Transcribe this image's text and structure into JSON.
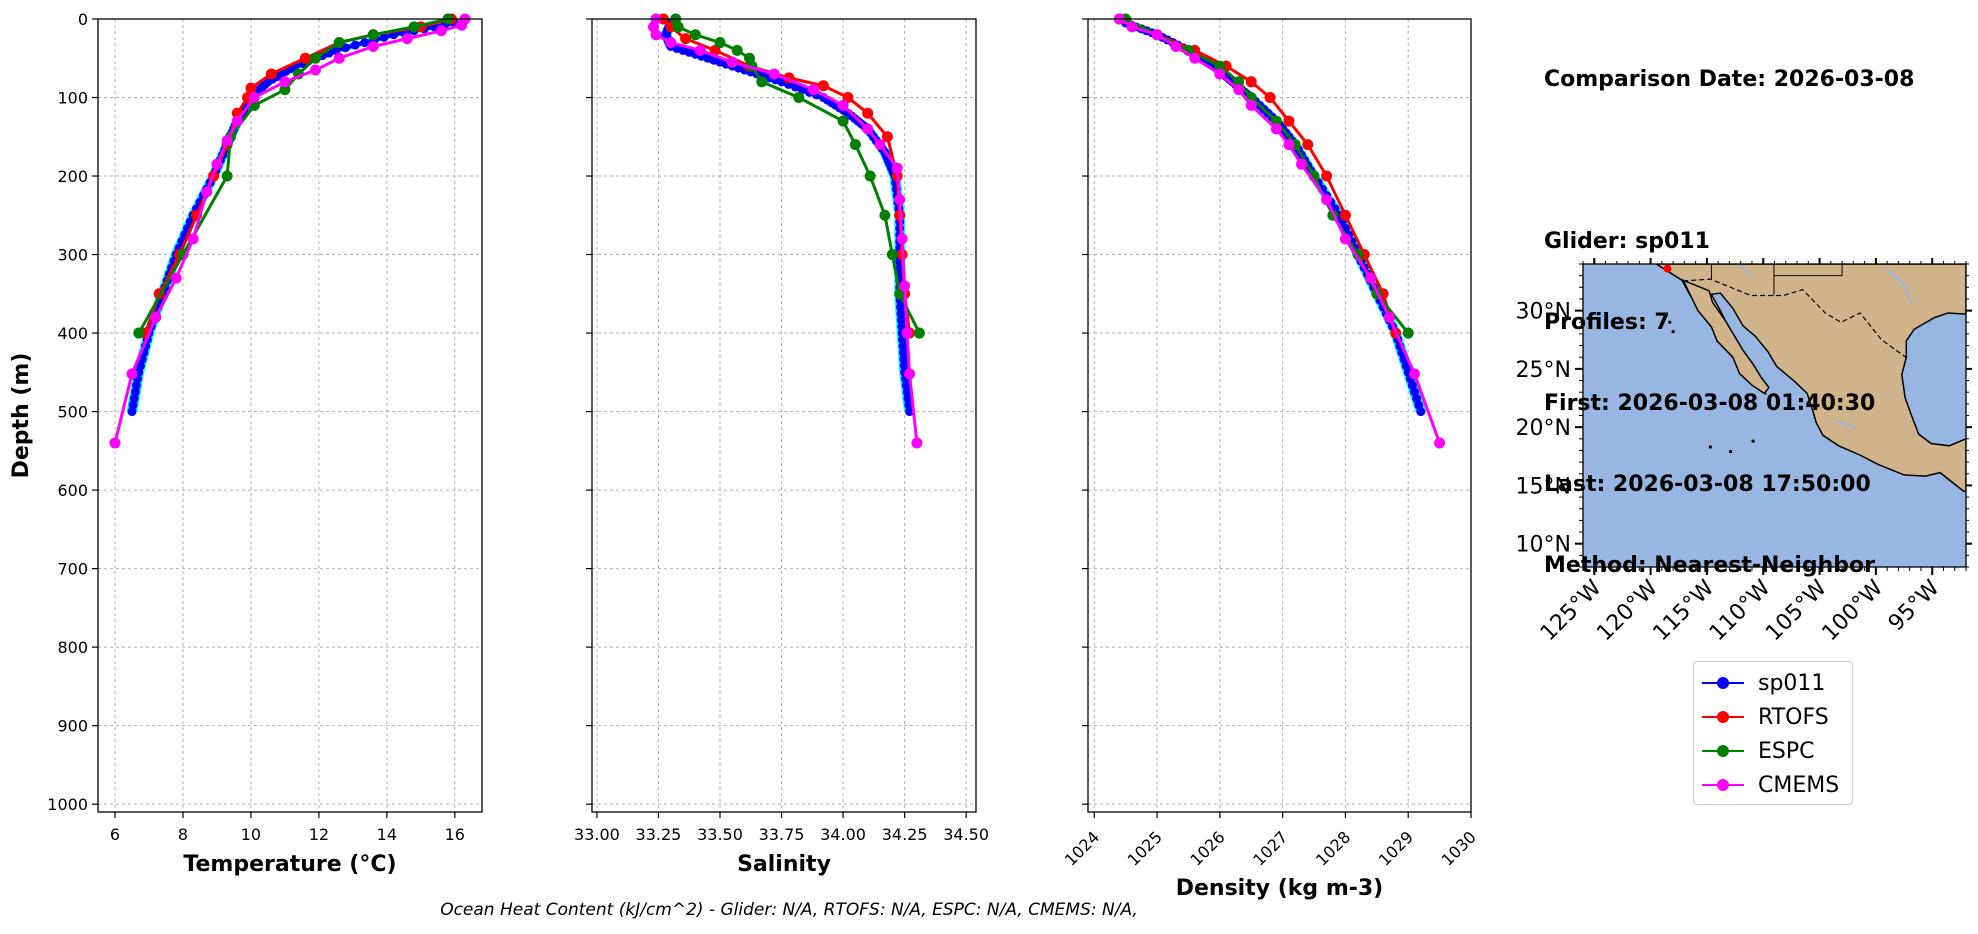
{
  "info": {
    "comparison": "Comparison Date: 2026-03-08",
    "glider": "Glider: sp011",
    "profiles": "Profiles: 7",
    "first": "First: 2026-03-08 01:40:30",
    "last": "Last: 2026-03-08 17:50:00",
    "method": "Method: Nearest-Neighbor"
  },
  "footer": "Ocean Heat Content (kJ/cm^2) - Glider: N/A,  RTOFS: N/A,  ESPC: N/A,  CMEMS: N/A,",
  "colors": {
    "sp011": "#0000ff",
    "sp011_spread": "#00ffff",
    "RTOFS": "#ff0000",
    "ESPC": "#008000",
    "CMEMS": "#ff00ff",
    "ocean": "#97b6e1",
    "land": "#d2b48c"
  },
  "legend": [
    {
      "label": "sp011",
      "color": "#0000ff"
    },
    {
      "label": "RTOFS",
      "color": "#ff0000"
    },
    {
      "label": "ESPC",
      "color": "#008000"
    },
    {
      "label": "CMEMS",
      "color": "#ff00ff"
    }
  ],
  "chart_data": [
    {
      "type": "line",
      "title": "",
      "xlabel": "Temperature (°C)",
      "ylabel": "Depth (m)",
      "xlim": [
        5.5,
        16.8
      ],
      "ylim": [
        1010,
        0
      ],
      "xticks": [
        6,
        8,
        10,
        12,
        14,
        16
      ],
      "yticks": [
        0,
        100,
        200,
        300,
        400,
        500,
        600,
        700,
        800,
        900,
        1000
      ],
      "grid": true,
      "series": [
        {
          "name": "sp011",
          "depth": [
            5,
            20,
            40,
            60,
            80,
            100,
            130,
            160,
            200,
            250,
            300,
            350,
            400,
            450,
            500
          ],
          "values": [
            16.0,
            14.2,
            12.5,
            11.3,
            10.5,
            10.0,
            9.6,
            9.3,
            8.9,
            8.3,
            7.8,
            7.4,
            7.0,
            6.7,
            6.5
          ]
        },
        {
          "name": "RTOFS",
          "depth": [
            0,
            10,
            20,
            30,
            50,
            70,
            88,
            100,
            120,
            160,
            200,
            250,
            300,
            350,
            400
          ],
          "values": [
            15.9,
            15.0,
            13.6,
            12.6,
            11.6,
            10.6,
            10.0,
            9.9,
            9.6,
            9.3,
            8.9,
            8.4,
            7.9,
            7.3,
            6.9
          ]
        },
        {
          "name": "ESPC",
          "depth": [
            0,
            10,
            20,
            30,
            50,
            70,
            90,
            110,
            150,
            200,
            300,
            400
          ],
          "values": [
            15.8,
            14.8,
            13.6,
            12.6,
            11.9,
            11.4,
            11.0,
            10.1,
            9.4,
            9.3,
            8.0,
            6.7
          ]
        },
        {
          "name": "CMEMS",
          "depth": [
            0,
            8,
            15,
            25,
            35,
            50,
            65,
            80,
            100,
            130,
            155,
            185,
            220,
            280,
            330,
            380,
            452,
            540
          ],
          "values": [
            16.3,
            16.2,
            15.6,
            14.6,
            13.6,
            12.6,
            11.9,
            11.0,
            10.1,
            9.6,
            9.3,
            9.0,
            8.7,
            8.3,
            7.8,
            7.2,
            6.5,
            6.0
          ]
        }
      ]
    },
    {
      "type": "line",
      "title": "",
      "xlabel": "Salinity",
      "ylabel": "",
      "xlim": [
        32.98,
        34.54
      ],
      "ylim": [
        1010,
        0
      ],
      "xticks": [
        33.0,
        33.25,
        33.5,
        33.75,
        34.0,
        34.25,
        34.5
      ],
      "grid": true,
      "series": [
        {
          "name": "sp011",
          "depth": [
            5,
            20,
            35,
            50,
            65,
            80,
            100,
            120,
            140,
            170,
            200,
            250,
            300,
            350,
            400,
            450,
            500
          ],
          "values": [
            33.3,
            33.28,
            33.3,
            33.45,
            33.6,
            33.75,
            33.92,
            34.02,
            34.1,
            34.17,
            34.21,
            34.23,
            34.23,
            34.23,
            34.24,
            34.25,
            34.27
          ]
        },
        {
          "name": "RTOFS",
          "depth": [
            0,
            10,
            25,
            40,
            60,
            75,
            85,
            100,
            120,
            150,
            200,
            250,
            300,
            350,
            400
          ],
          "values": [
            33.27,
            33.3,
            33.36,
            33.48,
            33.62,
            33.78,
            33.92,
            34.02,
            34.1,
            34.18,
            34.22,
            34.23,
            34.24,
            34.25,
            34.27
          ]
        },
        {
          "name": "ESPC",
          "depth": [
            0,
            10,
            20,
            30,
            40,
            50,
            60,
            80,
            100,
            130,
            160,
            200,
            250,
            300,
            350,
            400
          ],
          "values": [
            33.32,
            33.33,
            33.4,
            33.5,
            33.57,
            33.62,
            33.63,
            33.67,
            33.82,
            34.0,
            34.05,
            34.11,
            34.17,
            34.2,
            34.23,
            34.31
          ]
        },
        {
          "name": "CMEMS",
          "depth": [
            0,
            10,
            20,
            30,
            40,
            55,
            70,
            90,
            110,
            140,
            160,
            190,
            230,
            280,
            340,
            400,
            452,
            540
          ],
          "values": [
            33.24,
            33.23,
            33.24,
            33.3,
            33.42,
            33.55,
            33.72,
            33.88,
            34.0,
            34.1,
            34.15,
            34.22,
            34.23,
            34.24,
            34.25,
            34.26,
            34.27,
            34.3
          ]
        }
      ]
    },
    {
      "type": "line",
      "title": "",
      "xlabel": "Density (kg m-3)",
      "ylabel": "",
      "xlim": [
        1023.9,
        1030
      ],
      "ylim": [
        1010,
        0
      ],
      "xticks": [
        1024,
        1025,
        1026,
        1027,
        1028,
        1029,
        1030
      ],
      "grid": true,
      "series": [
        {
          "name": "sp011",
          "depth": [
            5,
            20,
            40,
            60,
            80,
            100,
            130,
            160,
            200,
            250,
            300,
            350,
            400,
            450,
            500
          ],
          "values": [
            1024.5,
            1025.0,
            1025.5,
            1025.9,
            1026.2,
            1026.5,
            1026.9,
            1027.2,
            1027.5,
            1027.9,
            1028.2,
            1028.5,
            1028.8,
            1029.0,
            1029.2
          ]
        },
        {
          "name": "RTOFS",
          "depth": [
            0,
            20,
            40,
            60,
            80,
            100,
            130,
            160,
            200,
            250,
            300,
            350,
            400
          ],
          "values": [
            1024.4,
            1025.0,
            1025.6,
            1026.1,
            1026.5,
            1026.8,
            1027.1,
            1027.4,
            1027.7,
            1028.0,
            1028.3,
            1028.6,
            1028.8
          ]
        },
        {
          "name": "ESPC",
          "depth": [
            0,
            20,
            40,
            60,
            80,
            100,
            130,
            160,
            200,
            250,
            300,
            350,
            400
          ],
          "values": [
            1024.5,
            1025.0,
            1025.5,
            1026.0,
            1026.3,
            1026.5,
            1026.9,
            1027.2,
            1027.5,
            1027.8,
            1028.2,
            1028.5,
            1029.0
          ]
        },
        {
          "name": "CMEMS",
          "depth": [
            0,
            10,
            20,
            35,
            50,
            70,
            90,
            110,
            140,
            160,
            185,
            230,
            280,
            330,
            380,
            452,
            540
          ],
          "values": [
            1024.4,
            1024.6,
            1025.0,
            1025.3,
            1025.6,
            1026.0,
            1026.3,
            1026.5,
            1026.9,
            1027.1,
            1027.3,
            1027.7,
            1028.0,
            1028.4,
            1028.7,
            1029.1,
            1029.5
          ]
        }
      ]
    },
    {
      "type": "map",
      "title": "",
      "lon_ticks": [
        "125°W",
        "120°W",
        "115°W",
        "110°W",
        "105°W",
        "100°W",
        "95°W"
      ],
      "lat_ticks": [
        "30°N",
        "25°N",
        "20°N",
        "15°N",
        "10°N"
      ],
      "lon_range": [
        -126,
        -92
      ],
      "lat_range": [
        8,
        34
      ],
      "glider_location": {
        "lon": -118.5,
        "lat": 33.6
      }
    }
  ]
}
